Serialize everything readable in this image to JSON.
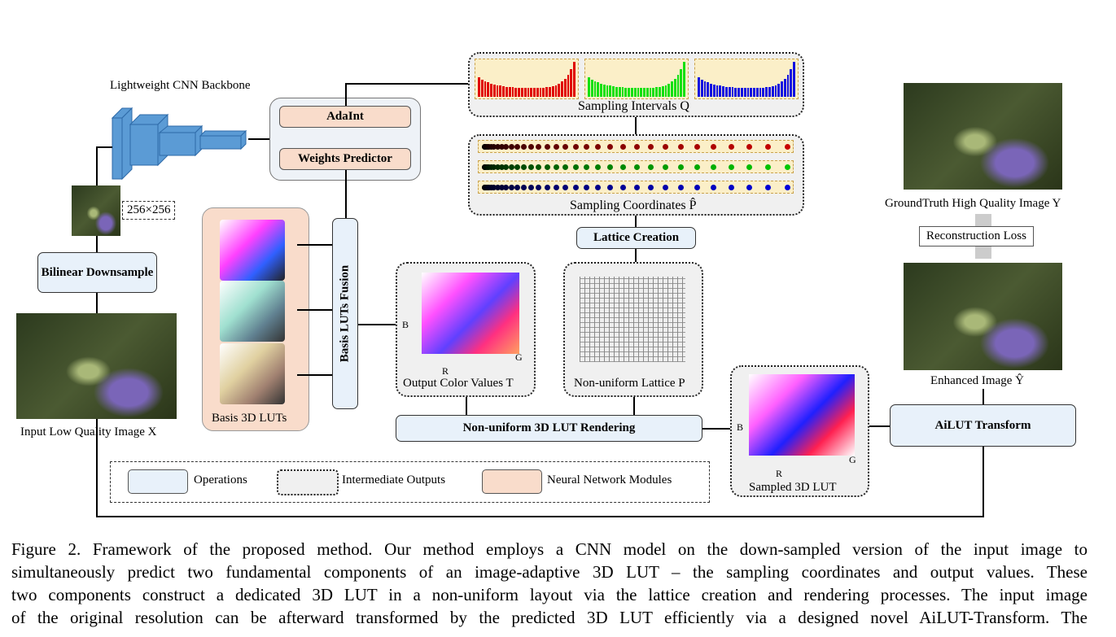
{
  "labels": {
    "backbone": "Lightweight CNN Backbone",
    "size": "256×256",
    "bilinear": "Bilinear Downsample",
    "input_image": "Input Low Quality Image X",
    "adaint": "AdaInt",
    "weights": "Weights Predictor",
    "basis_luts": "Basis 3D LUTs",
    "fusion": "Basis LUTs Fusion",
    "intervals": "Sampling Intervals Q",
    "coords": "Sampling Coordinates P̂",
    "lattice_creation": "Lattice Creation",
    "output_values": "Output Color Values T",
    "nonuniform_lattice": "Non-uniform Lattice P",
    "rendering": "Non-uniform 3D LUT Rendering",
    "sampled_lut": "Sampled 3D LUT",
    "ailut": "AiLUT Transform",
    "enhanced": "Enhanced Image Ŷ",
    "groundtruth": "GroundTruth High Quality Image Y",
    "loss": "Reconstruction Loss",
    "axis_r": "R",
    "axis_g": "G",
    "axis_b": "B"
  },
  "legend": [
    {
      "label": "Operations",
      "color": "#e8f1fa"
    },
    {
      "label": "Intermediate Outputs",
      "color": "#f0f0f0"
    },
    {
      "label": "Neural Network Modules",
      "color": "#f9dccb"
    }
  ],
  "colors": {
    "red": "#e00000",
    "green": "#10e010",
    "blue": "#1010e0"
  },
  "caption": [
    "Figure 2.  Framework of the proposed method.  Our method employs a CNN model on the down-sampled version of the input image to",
    "simultaneously predict two fundamental components of an image-adaptive 3D LUT – the sampling coordinates and output values. These",
    "two components construct a dedicated 3D LUT in a non-uniform layout via the lattice creation and rendering processes. The input image",
    "of the original resolution can be afterward transformed by the predicted 3D LUT efficiently via a designed novel AiLUT-Transform. The"
  ]
}
